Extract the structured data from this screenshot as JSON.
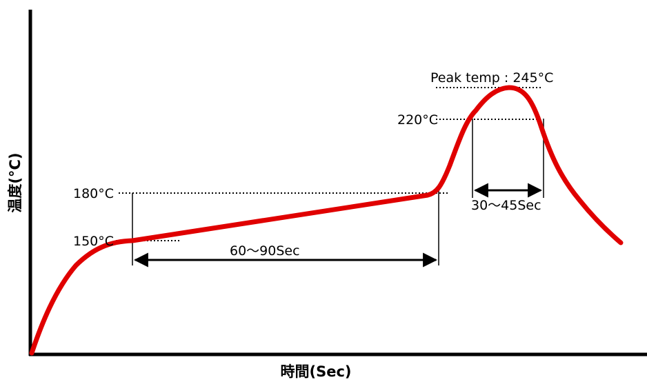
{
  "chart_data": {
    "type": "line",
    "xlabel": "時間(Sec)",
    "ylabel": "温度(°C)",
    "grid": false,
    "legend": "none",
    "series": [
      {
        "color": "#e00000",
        "note_points": "reflow temperature profile"
      }
    ],
    "annotations": {
      "peak": "Peak temp : 245°C",
      "level_220": "220°C",
      "level_180": "180°C",
      "level_150": "150°C",
      "preheat_duration": "60～90Sec",
      "reflow_duration": "30～45Sec"
    }
  },
  "colors": {
    "curve": "#e00000",
    "axis": "#000000",
    "guide": "#000000"
  }
}
